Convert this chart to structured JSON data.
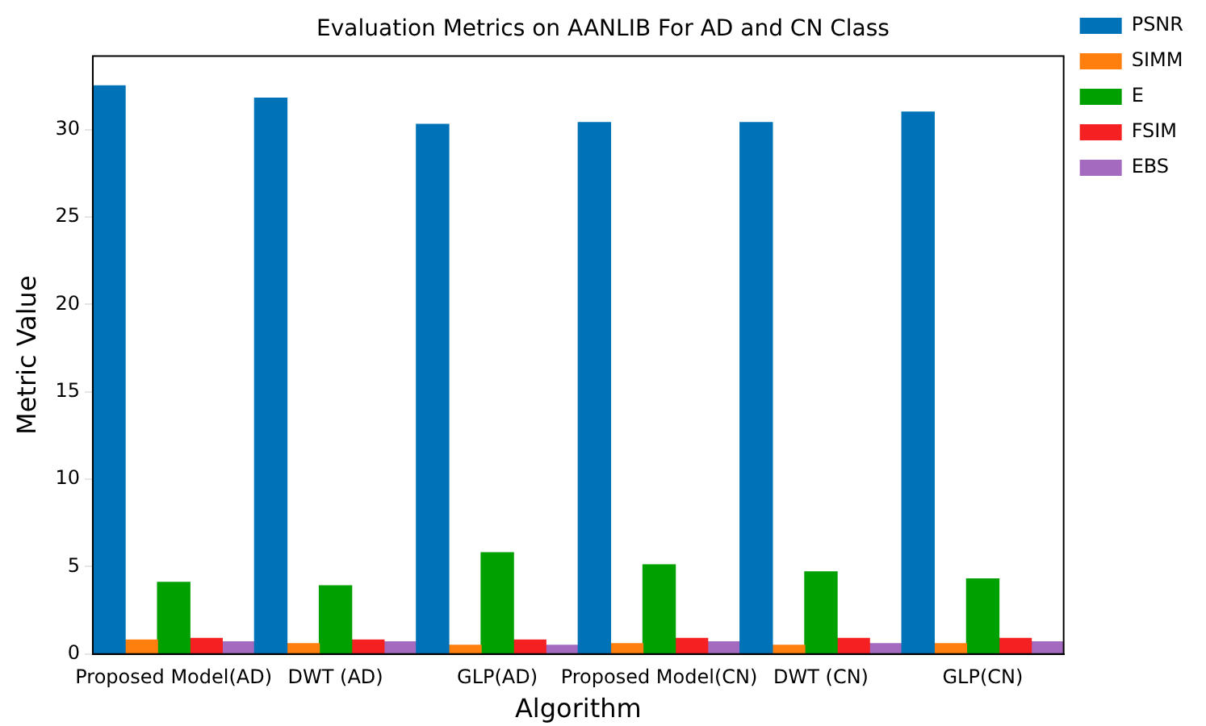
{
  "chart_data": {
    "type": "bar",
    "title": "Evaluation Metrics on AANLIB For AD and CN Class",
    "xlabel": "Algorithm",
    "ylabel": "Metric Value",
    "categories": [
      "Proposed Model(AD)",
      "DWT (AD)",
      "GLP(AD)",
      "Proposed Model(CN)",
      "DWT (CN)",
      "GLP(CN)"
    ],
    "series": [
      {
        "name": "PSNR",
        "color": "#0072b8",
        "values": [
          32.5,
          31.8,
          30.3,
          30.4,
          30.4,
          31.0
        ]
      },
      {
        "name": "SIMM",
        "color": "#ff7f0e",
        "values": [
          0.8,
          0.6,
          0.5,
          0.6,
          0.5,
          0.6
        ]
      },
      {
        "name": "E",
        "color": "#00a000",
        "values": [
          4.1,
          3.9,
          5.8,
          5.1,
          4.7,
          4.3
        ]
      },
      {
        "name": "FSIM",
        "color": "#f42022",
        "values": [
          0.9,
          0.8,
          0.8,
          0.9,
          0.9,
          0.9
        ]
      },
      {
        "name": "EBS",
        "color": "#a36ac0",
        "values": [
          0.7,
          0.7,
          0.5,
          0.7,
          0.6,
          0.7
        ]
      }
    ],
    "ylim": [
      0,
      34.2
    ],
    "yticks": [
      0,
      5,
      10,
      15,
      20,
      25,
      30
    ],
    "grid": false,
    "legend": "top right"
  }
}
